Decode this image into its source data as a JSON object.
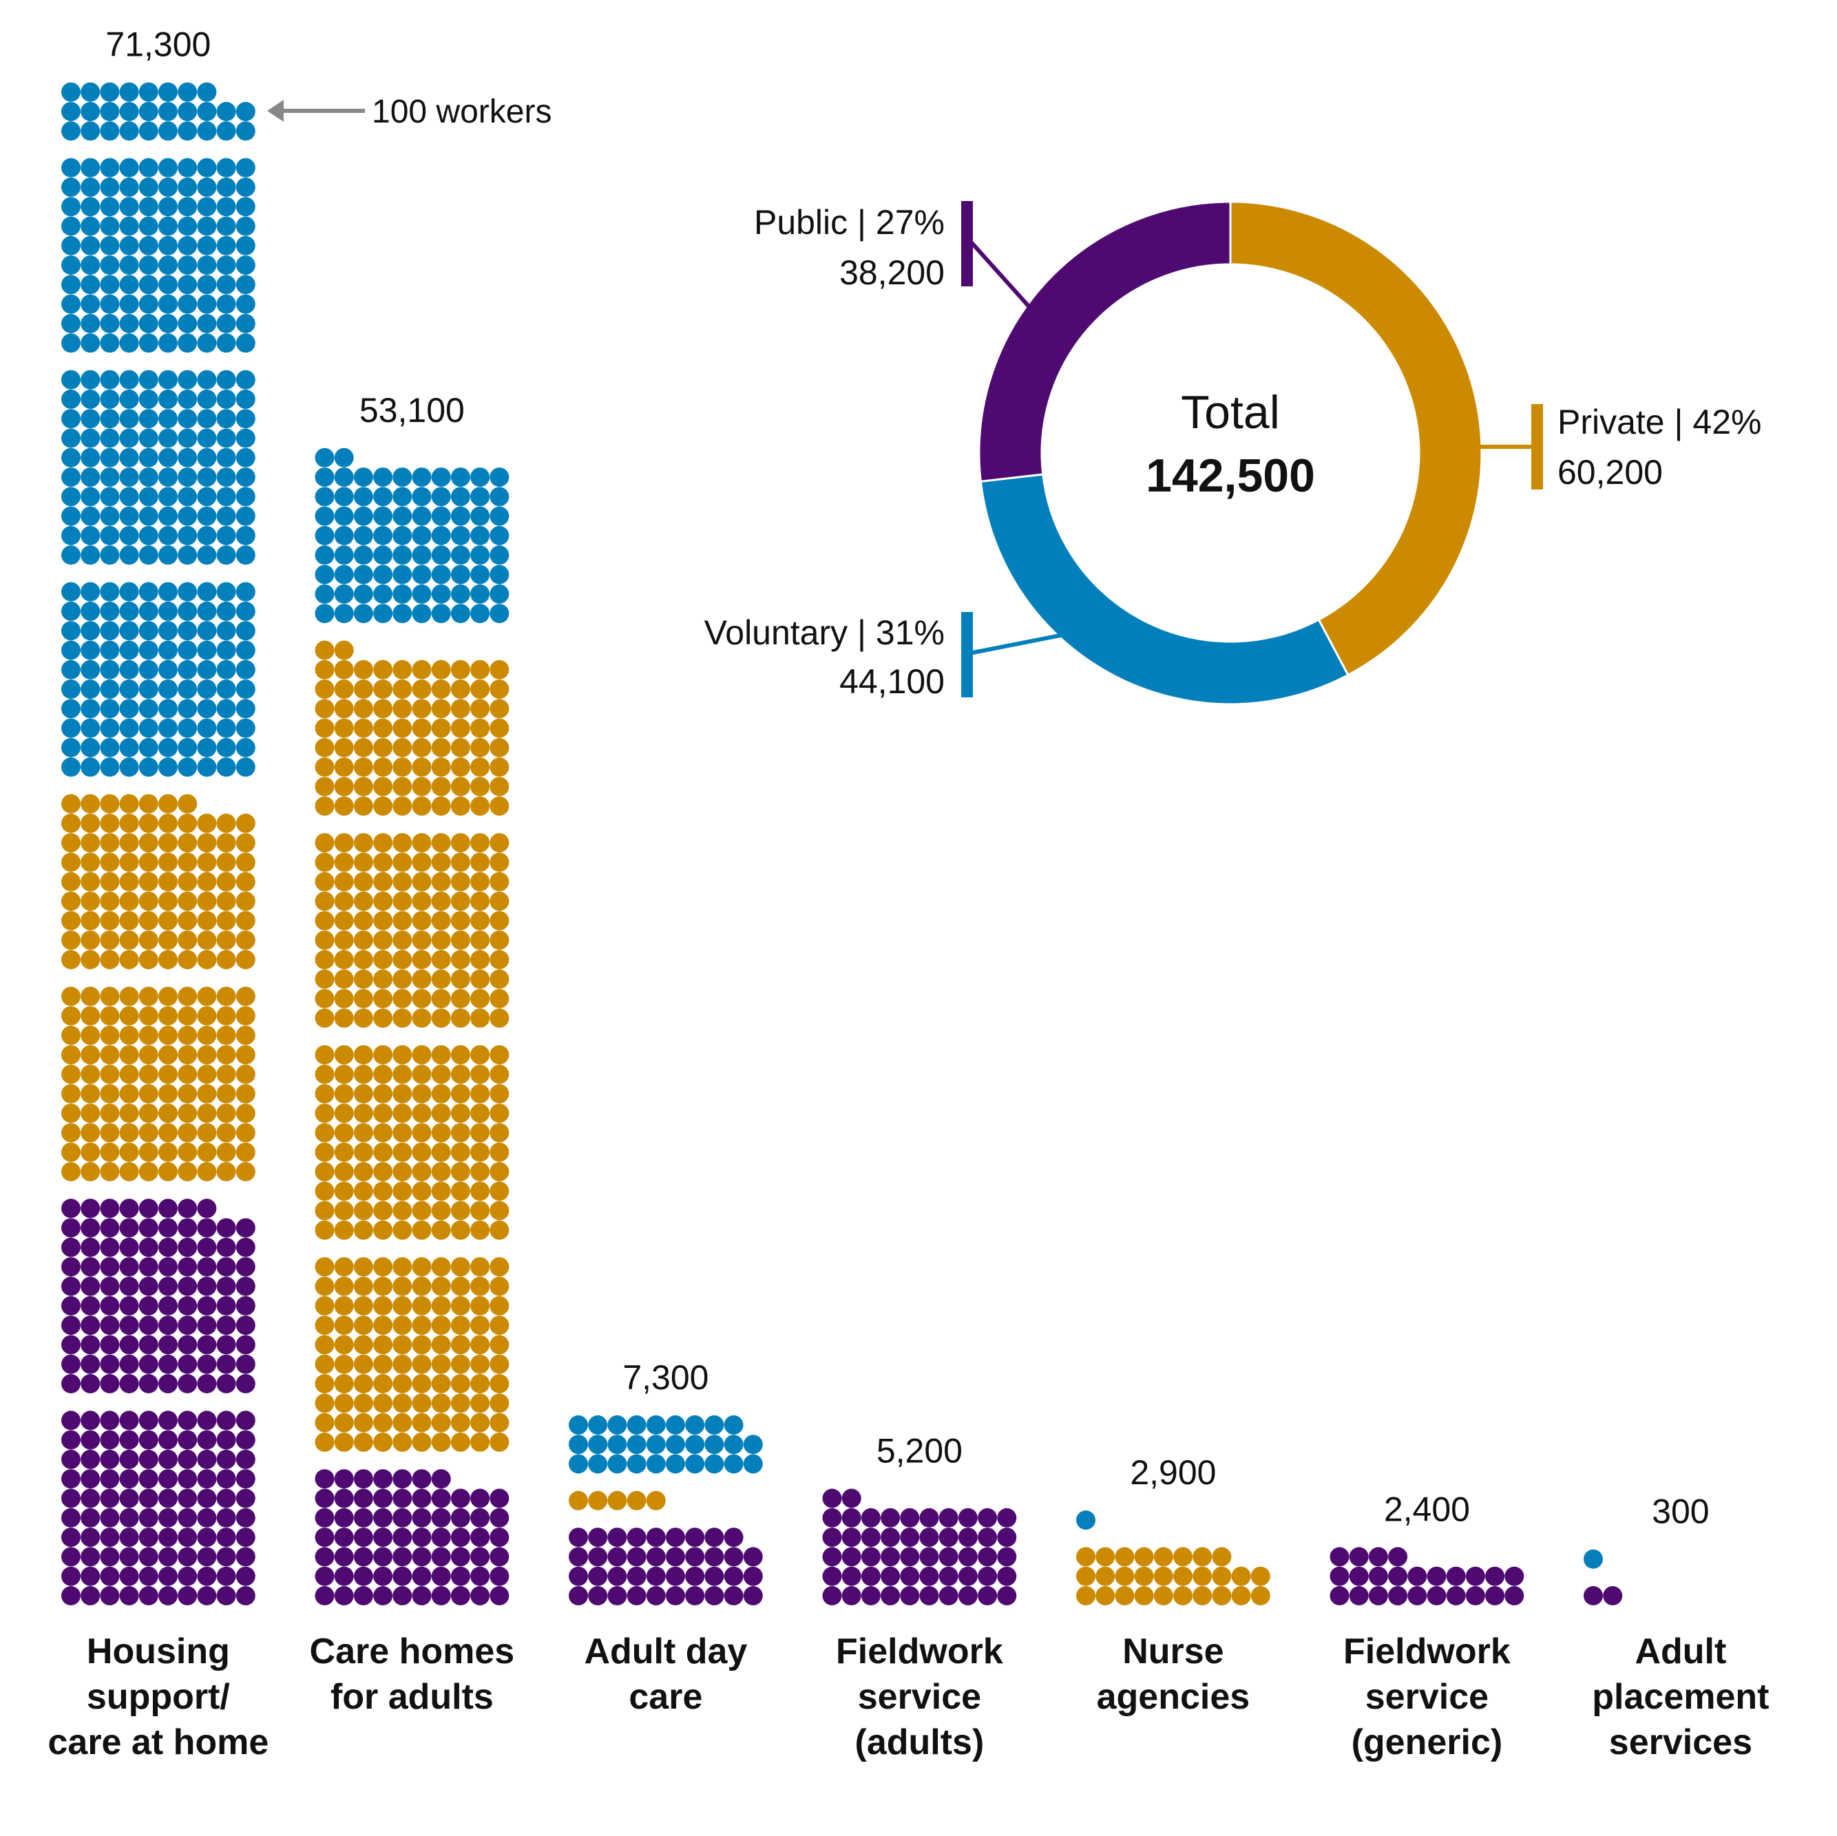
{
  "chart_data": [
    {
      "type": "waffle",
      "unit_note": "100 workers",
      "colors": {
        "public": "#4F0A72",
        "private": "#CC8A00",
        "voluntary": "#0380BC"
      },
      "categories": [
        {
          "label": [
            "Housing",
            "support/",
            "care at home"
          ],
          "total": 71300,
          "total_label": "71,300",
          "public": 19800,
          "private": 18700,
          "voluntary": 32800
        },
        {
          "label": [
            "Care homes",
            "for adults"
          ],
          "total": 53100,
          "total_label": "53,100",
          "public": 6700,
          "private": 38200,
          "voluntary": 8200
        },
        {
          "label": [
            "Adult day",
            "care"
          ],
          "total": 7300,
          "total_label": "7,300",
          "public": 3900,
          "private": 500,
          "voluntary": 2900
        },
        {
          "label": [
            "Fieldwork",
            "service",
            "(adults)"
          ],
          "total": 5200,
          "total_label": "5,200",
          "public": 5200,
          "private": 0,
          "voluntary": 0
        },
        {
          "label": [
            "Nurse",
            "agencies"
          ],
          "total": 2900,
          "total_label": "2,900",
          "public": 0,
          "private": 2800,
          "voluntary": 100
        },
        {
          "label": [
            "Fieldwork",
            "service",
            "(generic)"
          ],
          "total": 2400,
          "total_label": "2,400",
          "public": 2400,
          "private": 0,
          "voluntary": 0
        },
        {
          "label": [
            "Adult",
            "placement",
            "services"
          ],
          "total": 300,
          "total_label": "300",
          "public": 200,
          "private": 0,
          "voluntary": 100
        }
      ]
    },
    {
      "type": "pie",
      "donut": true,
      "center_label": "Total",
      "center_value": "142,500",
      "slices": [
        {
          "name": "Private",
          "label": "Private | 42%",
          "percent": 42,
          "value": 60200,
          "value_label": "60,200",
          "color": "#CC8A00"
        },
        {
          "name": "Voluntary",
          "label": "Voluntary | 31%",
          "percent": 31,
          "value": 44100,
          "value_label": "44,100",
          "color": "#0380BC"
        },
        {
          "name": "Public",
          "label": "Public | 27%",
          "percent": 27,
          "value": 38200,
          "value_label": "38,200",
          "color": "#4F0A72"
        }
      ]
    }
  ]
}
